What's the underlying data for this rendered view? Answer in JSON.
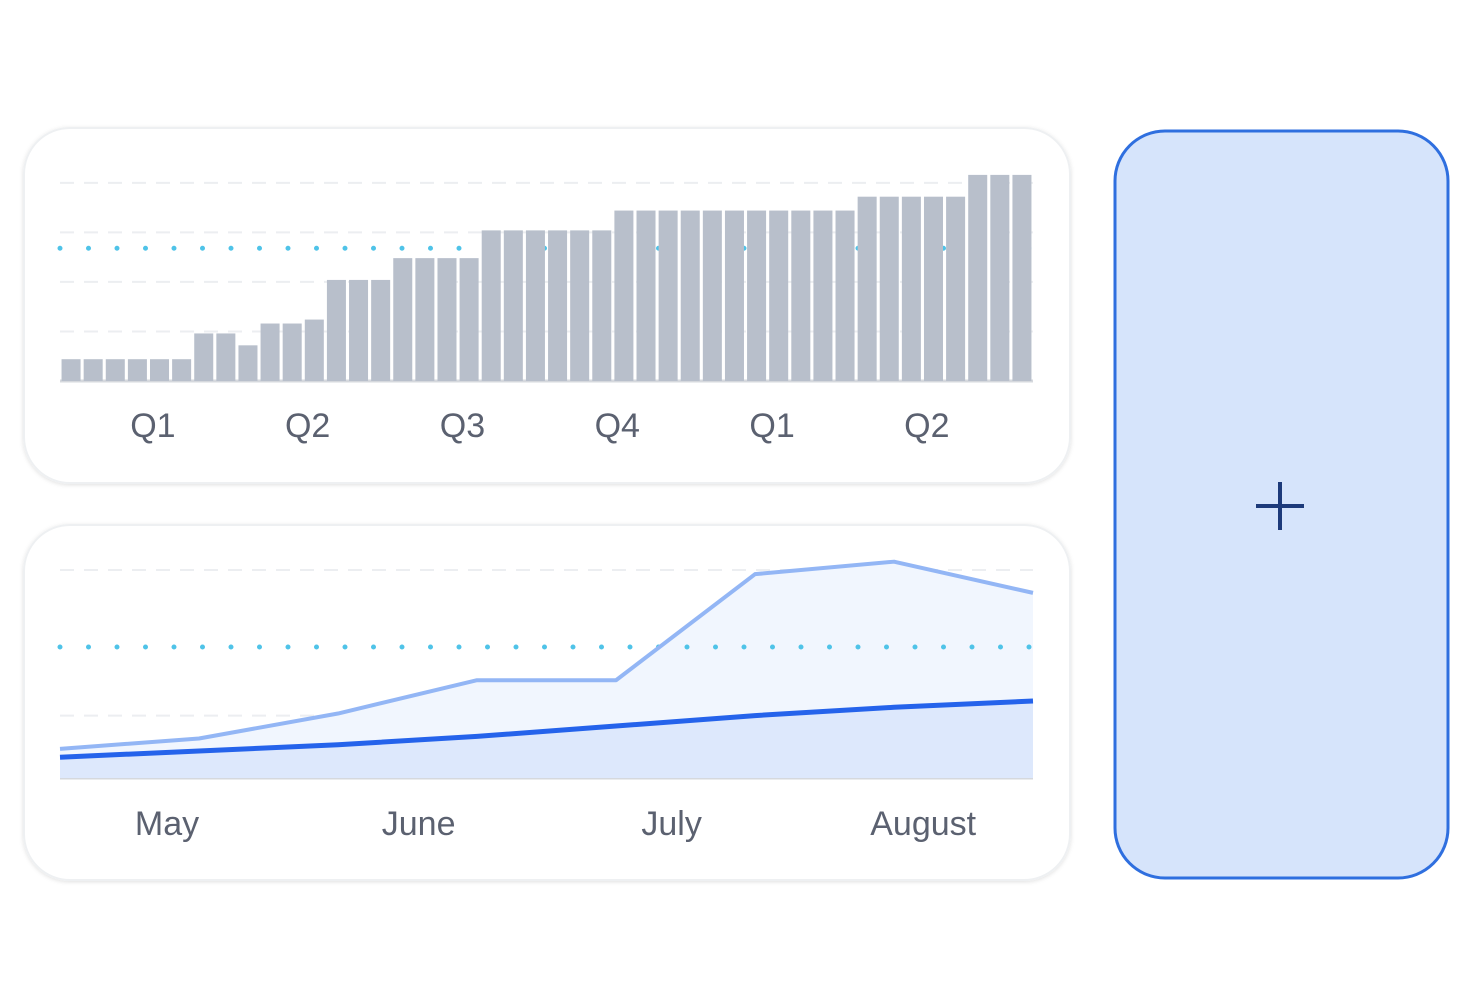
{
  "chart_data": [
    {
      "type": "bar",
      "categories": [
        null,
        null,
        null,
        null,
        "Q1",
        null,
        null,
        null,
        null,
        null,
        null,
        "Q2",
        null,
        null,
        null,
        null,
        null,
        null,
        "Q3",
        null,
        null,
        null,
        null,
        null,
        null,
        "Q4",
        null,
        null,
        null,
        null,
        null,
        null,
        "Q1",
        null,
        null,
        null,
        null,
        null,
        null,
        "Q2",
        null,
        null,
        null,
        null
      ],
      "values": [
        11,
        11,
        11,
        11,
        11,
        11,
        24,
        24,
        18,
        29,
        29,
        31,
        51,
        51,
        51,
        62,
        62,
        62,
        62,
        76,
        76,
        76,
        76,
        76,
        76,
        86,
        86,
        86,
        86,
        86,
        86,
        86,
        86,
        86,
        86,
        86,
        93,
        93,
        93,
        93,
        93,
        104,
        104,
        104
      ],
      "color": "#b8bfcb",
      "ylim": [
        0,
        110
      ],
      "yticks": [
        0,
        25,
        50,
        75,
        100
      ],
      "grid": true,
      "reference_line": 67,
      "reference_color": "#4fc3e8"
    },
    {
      "type": "line",
      "x": [
        0,
        1,
        2,
        3,
        4,
        5,
        6,
        7
      ],
      "xlim": [
        0,
        7
      ],
      "xticks": [
        {
          "value": 0.77,
          "label": "May"
        },
        {
          "value": 2.58,
          "label": "June"
        },
        {
          "value": 4.4,
          "label": "July"
        },
        {
          "value": 6.21,
          "label": "August"
        }
      ],
      "series": [
        {
          "color": "#93b6f5",
          "fill": "#f1f6fe",
          "values": [
            14,
            19,
            31,
            47,
            47,
            98,
            104,
            89
          ]
        },
        {
          "color": "#2563eb",
          "fill": "#dde8fc",
          "values": [
            10,
            13,
            16,
            20,
            25,
            30,
            34,
            37
          ]
        }
      ],
      "ylim": [
        0,
        100
      ],
      "yticks": [
        0,
        30,
        100
      ],
      "grid": true,
      "reference_line": 63,
      "reference_color": "#4fc3e8"
    }
  ]
}
